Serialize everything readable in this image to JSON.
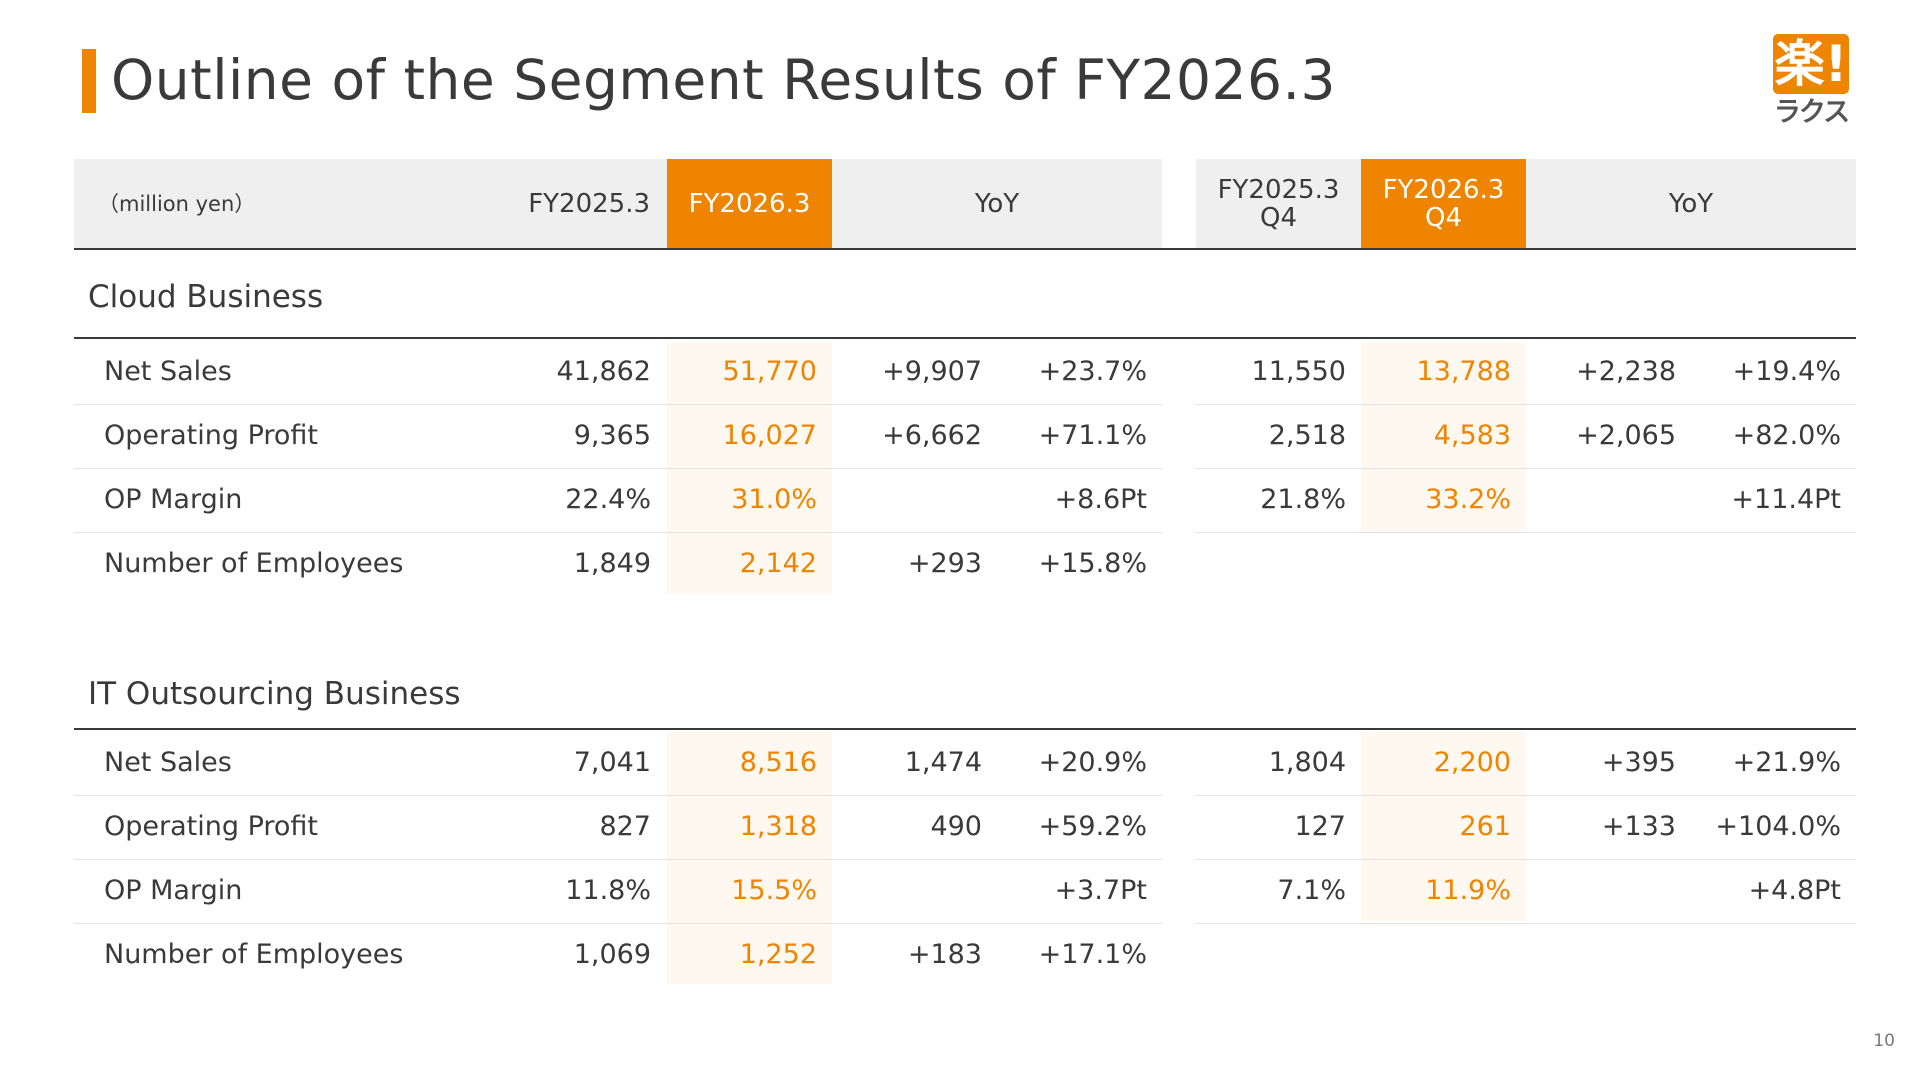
{
  "header": {
    "title": "Outline of the Segment Results of FY2026.3",
    "logo_text": "楽!",
    "logo_kana": "ラクス"
  },
  "table_header": {
    "unit": "（million yen）",
    "fy_prev": "FY2025.3",
    "fy_curr": "FY2026.3",
    "yoy": "YoY",
    "q4_prev_line1": "FY2025.3",
    "q4_prev_line2": "Q4",
    "q4_curr_line1": "FY2026.3",
    "q4_curr_line2": "Q4",
    "q4_yoy": "YoY"
  },
  "sections": [
    {
      "title": "Cloud Business",
      "rows": [
        {
          "label": "Net Sales",
          "prev": "41,862",
          "curr": "51,770",
          "yoy_abs": "+9,907",
          "yoy_pct": "+23.7%",
          "q4_prev": "11,550",
          "q4_curr": "13,788",
          "q4_yoy_abs": "+2,238",
          "q4_yoy_pct": "+19.4%"
        },
        {
          "label": "Operating Profit",
          "prev": "9,365",
          "curr": "16,027",
          "yoy_abs": "+6,662",
          "yoy_pct": "+71.1%",
          "q4_prev": "2,518",
          "q4_curr": "4,583",
          "q4_yoy_abs": "+2,065",
          "q4_yoy_pct": "+82.0%"
        },
        {
          "label": "OP Margin",
          "prev": "22.4%",
          "curr": "31.0%",
          "yoy_abs": "",
          "yoy_pct": "+8.6Pt",
          "q4_prev": "21.8%",
          "q4_curr": "33.2%",
          "q4_yoy_abs": "",
          "q4_yoy_pct": "+11.4Pt"
        },
        {
          "label": "Number of Employees",
          "prev": "1,849",
          "curr": "2,142",
          "yoy_abs": "+293",
          "yoy_pct": "+15.8%",
          "q4_prev": "",
          "q4_curr": "",
          "q4_yoy_abs": "",
          "q4_yoy_pct": ""
        }
      ]
    },
    {
      "title": "IT Outsourcing Business",
      "rows": [
        {
          "label": "Net Sales",
          "prev": "7,041",
          "curr": "8,516",
          "yoy_abs": "1,474",
          "yoy_pct": "+20.9%",
          "q4_prev": "1,804",
          "q4_curr": "2,200",
          "q4_yoy_abs": "+395",
          "q4_yoy_pct": "+21.9%"
        },
        {
          "label": "Operating Profit",
          "prev": "827",
          "curr": "1,318",
          "yoy_abs": "490",
          "yoy_pct": "+59.2%",
          "q4_prev": "127",
          "q4_curr": "261",
          "q4_yoy_abs": "+133",
          "q4_yoy_pct": "+104.0%"
        },
        {
          "label": "OP Margin",
          "prev": "11.8%",
          "curr": "15.5%",
          "yoy_abs": "",
          "yoy_pct": "+3.7Pt",
          "q4_prev": "7.1%",
          "q4_curr": "11.9%",
          "q4_yoy_abs": "",
          "q4_yoy_pct": "+4.8Pt"
        },
        {
          "label": "Number of Employees",
          "prev": "1,069",
          "curr": "1,252",
          "yoy_abs": "+183",
          "yoy_pct": "+17.1%",
          "q4_prev": "",
          "q4_curr": "",
          "q4_yoy_abs": "",
          "q4_yoy_pct": ""
        }
      ]
    }
  ],
  "footer": {
    "page_number": "10"
  },
  "colors": {
    "accent": "#ee8400",
    "highlight_bg": "#fff8f0",
    "header_bg": "#efefef",
    "text": "#3a3a3a"
  }
}
